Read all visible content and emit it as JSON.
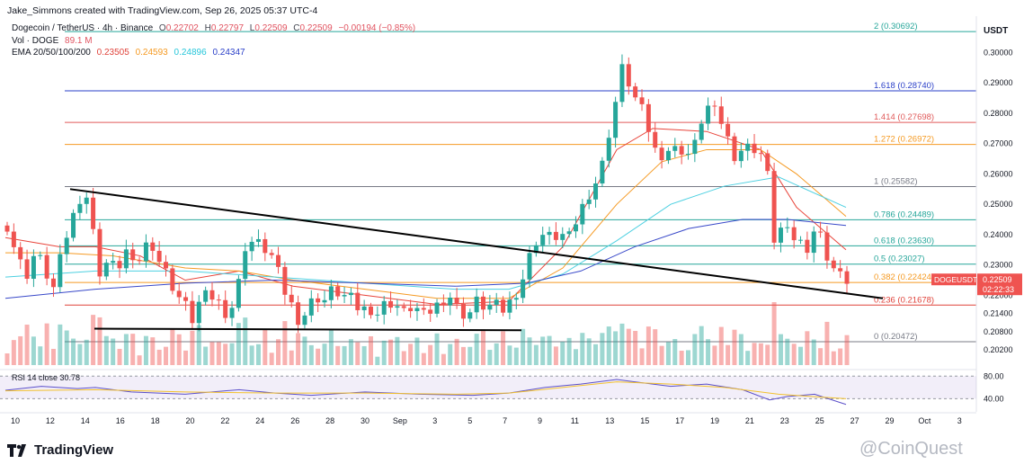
{
  "header": {
    "credit": "Jake_Simmons created with TradingView.com, Sep 26, 2025 05:37 UTC-4",
    "symbol": "Dogecoin / TetherUS · 4h · Binance",
    "ohlc": {
      "o_label": "O",
      "o": "0.22702",
      "h_label": "H",
      "h": "0.22797",
      "l_label": "L",
      "l": "0.22509",
      "c_label": "C",
      "c": "0.22509",
      "change": "−0.00194 (−0.85%)"
    },
    "vol_label": "Vol · DOGE",
    "vol_value": "89.1 M",
    "ema_label": "EMA 20/50/100/200",
    "ema_values": [
      "0.23505",
      "0.24593",
      "0.24896",
      "0.24347"
    ],
    "currency": "USDT"
  },
  "colors": {
    "up": "#26a69a",
    "down": "#ef5350",
    "ema20": "#e8443a",
    "ema50": "#f59a23",
    "ema100": "#4dd0e1",
    "ema200": "#3949c9",
    "trendline": "#000000"
  },
  "branding": {
    "logo_text": "TradingView",
    "watermark_text": "@CoinQuest"
  },
  "rsi": {
    "label": "RSI 14 close 30.78",
    "levels": [
      "80.00",
      "40.00"
    ]
  },
  "chart_data": {
    "type": "candlestick",
    "interval": "4h",
    "ylim": [
      0.197,
      0.312
    ],
    "y_ticks": [
      0.3,
      0.29,
      0.28,
      0.27,
      0.26,
      0.25,
      0.24,
      0.23,
      0.22,
      0.214,
      0.208,
      0.202
    ],
    "x_ticks": [
      "10",
      "12",
      "14",
      "16",
      "18",
      "20",
      "22",
      "24",
      "26",
      "28",
      "30",
      "Sep",
      "3",
      "5",
      "7",
      "9",
      "11",
      "13",
      "15",
      "17",
      "19",
      "21",
      "23",
      "25",
      "27",
      "29",
      "Oct",
      "3"
    ],
    "fib_levels": [
      {
        "label": "2 (0.30692)",
        "value": 0.30692,
        "color": "#26a69a"
      },
      {
        "label": "1.618 (0.28740)",
        "value": 0.2874,
        "color": "#2a3fc8"
      },
      {
        "label": "1.414 (0.27698)",
        "value": 0.27698,
        "color": "#e05a5a"
      },
      {
        "label": "1.272 (0.26972)",
        "value": 0.26972,
        "color": "#f59a23"
      },
      {
        "label": "1 (0.25582)",
        "value": 0.25582,
        "color": "#787b86"
      },
      {
        "label": "0.786 (0.24489)",
        "value": 0.24489,
        "color": "#26a69a"
      },
      {
        "label": "0.618 (0.23630)",
        "value": 0.2363,
        "color": "#26a69a"
      },
      {
        "label": "0.5 (0.23027)",
        "value": 0.23027,
        "color": "#26a69a"
      },
      {
        "label": "0.382 (0.22424)",
        "value": 0.22424,
        "color": "#f59a23"
      },
      {
        "label": "0.236 (0.21678)",
        "value": 0.21678,
        "color": "#e0443c"
      },
      {
        "label": "0 (0.20472)",
        "value": 0.20472,
        "color": "#787b86"
      }
    ],
    "price_tag": {
      "symbol": "DOGEUSDT",
      "price": "0.22509",
      "countdown": "02:22:33",
      "value": 0.22509
    },
    "candle_path": [
      [
        0,
        0.243
      ],
      [
        12,
        0.232
      ],
      [
        22,
        0.227
      ],
      [
        32,
        0.235
      ],
      [
        42,
        0.228
      ],
      [
        52,
        0.222
      ],
      [
        62,
        0.236
      ],
      [
        72,
        0.245
      ],
      [
        80,
        0.252
      ],
      [
        88,
        0.253
      ],
      [
        96,
        0.24
      ],
      [
        104,
        0.226
      ],
      [
        112,
        0.232
      ],
      [
        122,
        0.228
      ],
      [
        132,
        0.235
      ],
      [
        142,
        0.228
      ],
      [
        152,
        0.236
      ],
      [
        160,
        0.238
      ],
      [
        168,
        0.232
      ],
      [
        176,
        0.228
      ],
      [
        184,
        0.223
      ],
      [
        192,
        0.219
      ],
      [
        200,
        0.216
      ],
      [
        206,
        0.212
      ],
      [
        214,
        0.218
      ],
      [
        222,
        0.22
      ],
      [
        232,
        0.219
      ],
      [
        244,
        0.214
      ],
      [
        252,
        0.217
      ],
      [
        258,
        0.225
      ],
      [
        264,
        0.236
      ],
      [
        274,
        0.238
      ],
      [
        284,
        0.236
      ],
      [
        294,
        0.233
      ],
      [
        302,
        0.227
      ],
      [
        310,
        0.22
      ],
      [
        318,
        0.216
      ],
      [
        324,
        0.212
      ],
      [
        332,
        0.214
      ],
      [
        342,
        0.22
      ],
      [
        352,
        0.218
      ],
      [
        362,
        0.222
      ],
      [
        372,
        0.22
      ],
      [
        382,
        0.219
      ],
      [
        392,
        0.215
      ],
      [
        402,
        0.216
      ],
      [
        412,
        0.214
      ],
      [
        422,
        0.218
      ],
      [
        432,
        0.217
      ],
      [
        442,
        0.214
      ],
      [
        452,
        0.217
      ],
      [
        462,
        0.213
      ],
      [
        472,
        0.215
      ],
      [
        482,
        0.218
      ],
      [
        492,
        0.22
      ],
      [
        502,
        0.215
      ],
      [
        512,
        0.213
      ],
      [
        522,
        0.218
      ],
      [
        532,
        0.216
      ],
      [
        542,
        0.217
      ],
      [
        552,
        0.215
      ],
      [
        562,
        0.219
      ],
      [
        572,
        0.224
      ],
      [
        580,
        0.232
      ],
      [
        588,
        0.238
      ],
      [
        596,
        0.24
      ],
      [
        606,
        0.239
      ],
      [
        616,
        0.24
      ],
      [
        626,
        0.239
      ],
      [
        636,
        0.247
      ],
      [
        646,
        0.253
      ],
      [
        656,
        0.258
      ],
      [
        664,
        0.265
      ],
      [
        672,
        0.278
      ],
      [
        680,
        0.288
      ],
      [
        686,
        0.298
      ],
      [
        692,
        0.289
      ],
      [
        700,
        0.284
      ],
      [
        708,
        0.28
      ],
      [
        716,
        0.272
      ],
      [
        724,
        0.265
      ],
      [
        732,
        0.268
      ],
      [
        742,
        0.268
      ],
      [
        752,
        0.268
      ],
      [
        760,
        0.266
      ],
      [
        768,
        0.272
      ],
      [
        776,
        0.283
      ],
      [
        784,
        0.281
      ],
      [
        792,
        0.279
      ],
      [
        800,
        0.273
      ],
      [
        808,
        0.266
      ],
      [
        816,
        0.268
      ],
      [
        826,
        0.269
      ],
      [
        836,
        0.268
      ],
      [
        842,
        0.265
      ],
      [
        848,
        0.256
      ],
      [
        852,
        0.238
      ],
      [
        860,
        0.242
      ],
      [
        870,
        0.24
      ],
      [
        880,
        0.238
      ],
      [
        890,
        0.236
      ],
      [
        898,
        0.242
      ],
      [
        904,
        0.24
      ],
      [
        912,
        0.233
      ],
      [
        918,
        0.23
      ],
      [
        924,
        0.225
      ],
      [
        928,
        0.227
      ],
      [
        934,
        0.225
      ]
    ],
    "ema20_path": [
      [
        0,
        0.239
      ],
      [
        60,
        0.236
      ],
      [
        100,
        0.236
      ],
      [
        150,
        0.233
      ],
      [
        200,
        0.225
      ],
      [
        260,
        0.228
      ],
      [
        320,
        0.223
      ],
      [
        400,
        0.22
      ],
      [
        480,
        0.217
      ],
      [
        560,
        0.218
      ],
      [
        620,
        0.236
      ],
      [
        680,
        0.268
      ],
      [
        720,
        0.275
      ],
      [
        780,
        0.274
      ],
      [
        840,
        0.268
      ],
      [
        880,
        0.249
      ],
      [
        935,
        0.235
      ]
    ],
    "ema50_path": [
      [
        0,
        0.234
      ],
      [
        60,
        0.234
      ],
      [
        120,
        0.233
      ],
      [
        200,
        0.229
      ],
      [
        260,
        0.228
      ],
      [
        320,
        0.225
      ],
      [
        400,
        0.222
      ],
      [
        480,
        0.219
      ],
      [
        560,
        0.219
      ],
      [
        620,
        0.229
      ],
      [
        680,
        0.25
      ],
      [
        730,
        0.264
      ],
      [
        780,
        0.268
      ],
      [
        840,
        0.268
      ],
      [
        880,
        0.26
      ],
      [
        935,
        0.246
      ]
    ],
    "ema100_path": [
      [
        0,
        0.226
      ],
      [
        100,
        0.228
      ],
      [
        200,
        0.228
      ],
      [
        300,
        0.226
      ],
      [
        400,
        0.224
      ],
      [
        500,
        0.222
      ],
      [
        560,
        0.222
      ],
      [
        620,
        0.227
      ],
      [
        680,
        0.238
      ],
      [
        740,
        0.25
      ],
      [
        800,
        0.256
      ],
      [
        860,
        0.259
      ],
      [
        935,
        0.249
      ]
    ],
    "ema200_path": [
      [
        0,
        0.219
      ],
      [
        100,
        0.222
      ],
      [
        200,
        0.224
      ],
      [
        300,
        0.225
      ],
      [
        400,
        0.224
      ],
      [
        500,
        0.223
      ],
      [
        580,
        0.224
      ],
      [
        640,
        0.228
      ],
      [
        700,
        0.236
      ],
      [
        760,
        0.242
      ],
      [
        820,
        0.245
      ],
      [
        870,
        0.245
      ],
      [
        935,
        0.243
      ]
    ],
    "trendlines": [
      {
        "from": [
          78,
          0.255
        ],
        "to": [
          982,
          0.219
        ]
      },
      {
        "from": [
          105,
          0.209
        ],
        "to": [
          580,
          0.2085
        ]
      }
    ],
    "rsi_path": [
      [
        0,
        55
      ],
      [
        40,
        62
      ],
      [
        80,
        58
      ],
      [
        100,
        60
      ],
      [
        140,
        52
      ],
      [
        200,
        48
      ],
      [
        260,
        56
      ],
      [
        300,
        50
      ],
      [
        340,
        46
      ],
      [
        400,
        52
      ],
      [
        460,
        48
      ],
      [
        520,
        46
      ],
      [
        560,
        50
      ],
      [
        600,
        60
      ],
      [
        640,
        66
      ],
      [
        680,
        74
      ],
      [
        700,
        70
      ],
      [
        740,
        62
      ],
      [
        780,
        66
      ],
      [
        820,
        56
      ],
      [
        850,
        38
      ],
      [
        870,
        44
      ],
      [
        900,
        48
      ],
      [
        935,
        30
      ]
    ],
    "rsi_ma_path": [
      [
        0,
        54
      ],
      [
        100,
        56
      ],
      [
        200,
        52
      ],
      [
        300,
        50
      ],
      [
        400,
        50
      ],
      [
        500,
        48
      ],
      [
        560,
        50
      ],
      [
        620,
        60
      ],
      [
        680,
        70
      ],
      [
        740,
        66
      ],
      [
        800,
        60
      ],
      [
        860,
        48
      ],
      [
        935,
        40
      ]
    ]
  }
}
